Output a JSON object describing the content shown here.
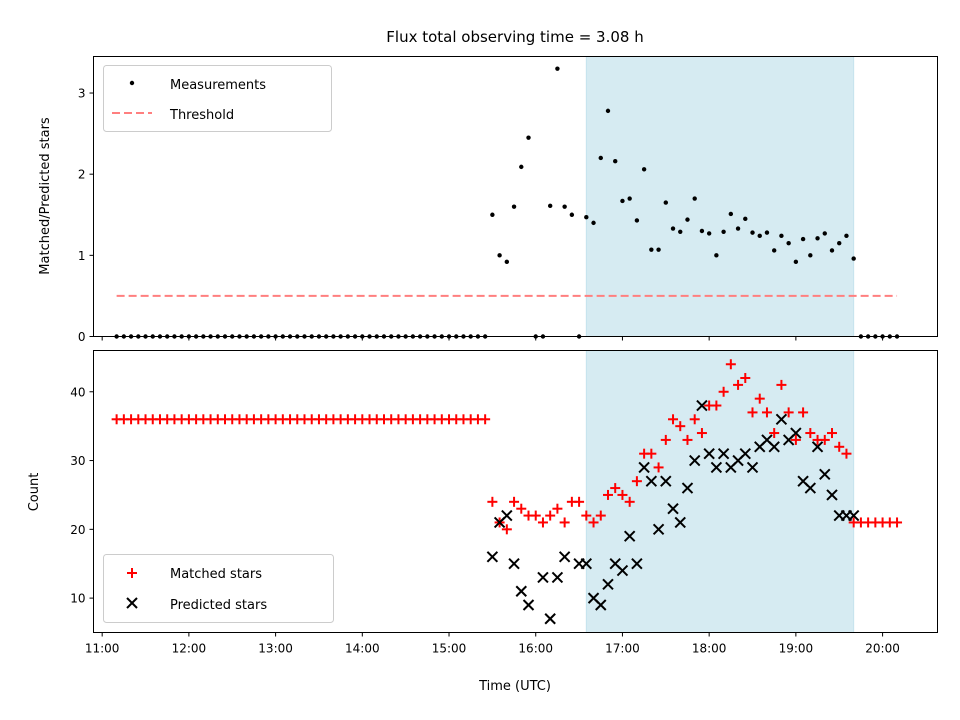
{
  "chart_data": [
    {
      "type": "scatter",
      "title": "Flux total observing time = 3.08 h",
      "xlabel": "",
      "ylabel": "Matched/Predicted stars",
      "ylim": [
        0,
        3.45
      ],
      "yticks": [
        0,
        1,
        2,
        3
      ],
      "legend_position": "upper-left",
      "legend": [
        "Measurements",
        "Threshold"
      ],
      "shaded_interval": [
        "16:35",
        "19:40"
      ],
      "threshold": {
        "name": "Threshold",
        "value": 0.5,
        "x_start": "11:10",
        "x_end": "20:10",
        "color": "#ff7f7f"
      },
      "series": [
        {
          "name": "Measurements",
          "color": "#000000",
          "marker": "dot",
          "x": [
            "11:10",
            "11:15",
            "11:20",
            "11:25",
            "11:30",
            "11:35",
            "11:40",
            "11:45",
            "11:50",
            "11:55",
            "12:00",
            "12:05",
            "12:10",
            "12:15",
            "12:20",
            "12:25",
            "12:30",
            "12:35",
            "12:40",
            "12:45",
            "12:50",
            "12:55",
            "13:00",
            "13:05",
            "13:10",
            "13:15",
            "13:20",
            "13:25",
            "13:30",
            "13:35",
            "13:40",
            "13:45",
            "13:50",
            "13:55",
            "14:00",
            "14:05",
            "14:10",
            "14:15",
            "14:20",
            "14:25",
            "14:30",
            "14:35",
            "14:40",
            "14:45",
            "14:50",
            "14:55",
            "15:00",
            "15:05",
            "15:10",
            "15:15",
            "15:20",
            "15:25",
            "15:30",
            "15:35",
            "15:40",
            "15:45",
            "15:50",
            "15:55",
            "16:00",
            "16:05",
            "16:10",
            "16:15",
            "16:20",
            "16:25",
            "16:30",
            "16:35",
            "16:40",
            "16:45",
            "16:50",
            "16:55",
            "17:00",
            "17:05",
            "17:10",
            "17:15",
            "17:20",
            "17:25",
            "17:30",
            "17:35",
            "17:40",
            "17:45",
            "17:50",
            "17:55",
            "18:00",
            "18:05",
            "18:10",
            "18:15",
            "18:20",
            "18:25",
            "18:30",
            "18:35",
            "18:40",
            "18:45",
            "18:50",
            "18:55",
            "19:00",
            "19:05",
            "19:10",
            "19:15",
            "19:20",
            "19:25",
            "19:30",
            "19:35",
            "19:40",
            "19:45",
            "19:50",
            "19:55",
            "20:00",
            "20:05",
            "20:10"
          ],
          "y": [
            0,
            0,
            0,
            0,
            0,
            0,
            0,
            0,
            0,
            0,
            0,
            0,
            0,
            0,
            0,
            0,
            0,
            0,
            0,
            0,
            0,
            0,
            0,
            0,
            0,
            0,
            0,
            0,
            0,
            0,
            0,
            0,
            0,
            0,
            0,
            0,
            0,
            0,
            0,
            0,
            0,
            0,
            0,
            0,
            0,
            0,
            0,
            0,
            0,
            0,
            0,
            0,
            1.5,
            1.0,
            0.92,
            1.6,
            2.09,
            2.45,
            0,
            0,
            1.61,
            3.3,
            1.6,
            1.5,
            0,
            1.47,
            1.4,
            2.2,
            2.78,
            2.16,
            1.67,
            1.7,
            1.43,
            2.06,
            1.07,
            1.07,
            1.65,
            1.33,
            1.29,
            1.44,
            1.7,
            1.3,
            1.27,
            1.0,
            1.29,
            1.51,
            1.33,
            1.45,
            1.28,
            1.24,
            1.28,
            1.06,
            1.24,
            1.15,
            0.92,
            1.2,
            1.0,
            1.21,
            1.27,
            1.06,
            1.15,
            1.24,
            0.96,
            0,
            0,
            0,
            0,
            0,
            0
          ]
        }
      ]
    },
    {
      "type": "scatter",
      "title": "",
      "xlabel": "Time (UTC)",
      "ylabel": "Count",
      "ylim": [
        5,
        46
      ],
      "yticks": [
        10,
        20,
        30,
        40
      ],
      "xticks": [
        "11:00",
        "12:00",
        "13:00",
        "14:00",
        "15:00",
        "16:00",
        "17:00",
        "18:00",
        "19:00",
        "20:00"
      ],
      "legend_position": "lower-left",
      "legend": [
        "Matched stars",
        "Predicted stars"
      ],
      "shaded_interval": [
        "16:35",
        "19:40"
      ],
      "series": [
        {
          "name": "Matched stars",
          "color": "#ff0000",
          "marker": "plus",
          "x": [
            "11:10",
            "11:15",
            "11:20",
            "11:25",
            "11:30",
            "11:35",
            "11:40",
            "11:45",
            "11:50",
            "11:55",
            "12:00",
            "12:05",
            "12:10",
            "12:15",
            "12:20",
            "12:25",
            "12:30",
            "12:35",
            "12:40",
            "12:45",
            "12:50",
            "12:55",
            "13:00",
            "13:05",
            "13:10",
            "13:15",
            "13:20",
            "13:25",
            "13:30",
            "13:35",
            "13:40",
            "13:45",
            "13:50",
            "13:55",
            "14:00",
            "14:05",
            "14:10",
            "14:15",
            "14:20",
            "14:25",
            "14:30",
            "14:35",
            "14:40",
            "14:45",
            "14:50",
            "14:55",
            "15:00",
            "15:05",
            "15:10",
            "15:15",
            "15:20",
            "15:25",
            "15:30",
            "15:35",
            "15:40",
            "15:45",
            "15:50",
            "15:55",
            "16:00",
            "16:05",
            "16:10",
            "16:15",
            "16:20",
            "16:25",
            "16:30",
            "16:35",
            "16:40",
            "16:45",
            "16:50",
            "16:55",
            "17:00",
            "17:05",
            "17:10",
            "17:15",
            "17:20",
            "17:25",
            "17:30",
            "17:35",
            "17:40",
            "17:45",
            "17:50",
            "17:55",
            "18:00",
            "18:05",
            "18:10",
            "18:15",
            "18:20",
            "18:25",
            "18:30",
            "18:35",
            "18:40",
            "18:45",
            "18:50",
            "18:55",
            "19:00",
            "19:05",
            "19:10",
            "19:15",
            "19:20",
            "19:25",
            "19:30",
            "19:35",
            "19:40",
            "19:45",
            "19:50",
            "19:55",
            "20:00",
            "20:05",
            "20:10"
          ],
          "y": [
            36,
            36,
            36,
            36,
            36,
            36,
            36,
            36,
            36,
            36,
            36,
            36,
            36,
            36,
            36,
            36,
            36,
            36,
            36,
            36,
            36,
            36,
            36,
            36,
            36,
            36,
            36,
            36,
            36,
            36,
            36,
            36,
            36,
            36,
            36,
            36,
            36,
            36,
            36,
            36,
            36,
            36,
            36,
            36,
            36,
            36,
            36,
            36,
            36,
            36,
            36,
            36,
            24,
            21,
            20,
            24,
            23,
            22,
            22,
            21,
            22,
            23,
            21,
            24,
            24,
            22,
            21,
            22,
            25,
            26,
            25,
            24,
            27,
            31,
            31,
            29,
            33,
            36,
            35,
            33,
            36,
            34,
            38,
            38,
            40,
            44,
            41,
            42,
            37,
            39,
            37,
            34,
            41,
            37,
            33,
            37,
            34,
            33,
            33,
            34,
            32,
            31,
            21,
            21,
            21,
            21,
            21,
            21,
            21
          ]
        },
        {
          "name": "Predicted stars",
          "color": "#000000",
          "marker": "x",
          "x": [
            "15:30",
            "15:35",
            "15:40",
            "15:45",
            "15:50",
            "15:55",
            "16:05",
            "16:10",
            "16:15",
            "16:20",
            "16:30",
            "16:35",
            "16:40",
            "16:45",
            "16:50",
            "16:55",
            "17:00",
            "17:05",
            "17:10",
            "17:15",
            "17:20",
            "17:25",
            "17:30",
            "17:35",
            "17:40",
            "17:45",
            "17:50",
            "17:55",
            "18:00",
            "18:05",
            "18:10",
            "18:15",
            "18:20",
            "18:25",
            "18:30",
            "18:35",
            "18:40",
            "18:45",
            "18:50",
            "18:55",
            "19:00",
            "19:05",
            "19:10",
            "19:15",
            "19:20",
            "19:25",
            "19:30",
            "19:35",
            "19:40"
          ],
          "y": [
            16,
            21,
            22,
            15,
            11,
            9,
            13,
            7,
            13,
            16,
            15,
            15,
            10,
            9,
            12,
            15,
            14,
            19,
            15,
            29,
            27,
            20,
            27,
            23,
            21,
            26,
            30,
            38,
            31,
            29,
            31,
            29,
            30,
            31,
            29,
            32,
            33,
            32,
            36,
            33,
            34,
            27,
            26,
            32,
            28,
            25,
            22,
            22,
            22
          ]
        }
      ]
    }
  ]
}
